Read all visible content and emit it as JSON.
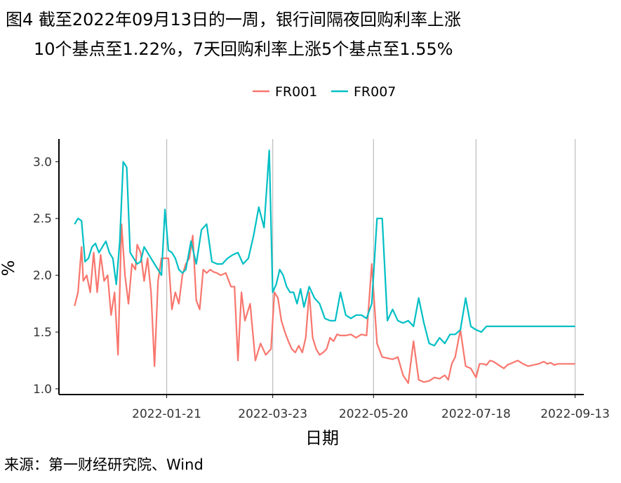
{
  "title": {
    "line1": "图4  截至2022年09月13日的一周，银行间隔夜回购利率上涨",
    "line2": "10个基点至1.22%，7天回购利率上涨5个基点至1.55%"
  },
  "source": "来源：第一财经研究院、Wind",
  "chart_data": {
    "type": "line",
    "xlabel": "日期",
    "ylabel": "%",
    "ylim": [
      0.95,
      3.2
    ],
    "xlim": [
      "2021-11-20",
      "2022-09-18"
    ],
    "yticks": [
      "1.0",
      "1.5",
      "2.0",
      "2.5",
      "3.0"
    ],
    "xticks": [
      "2022-01-21",
      "2022-03-23",
      "2022-05-20",
      "2022-07-18",
      "2022-09-13"
    ],
    "grid": {
      "vertical_major": true,
      "horizontal": false
    },
    "legend_position": "top",
    "colors": {
      "FR001": "#F8766D",
      "FR007": "#00BFC4"
    },
    "series": [
      {
        "name": "FR001",
        "x": [
          "2021-11-29",
          "2021-12-01",
          "2021-12-03",
          "2021-12-04",
          "2021-12-06",
          "2021-12-08",
          "2021-12-10",
          "2021-12-12",
          "2021-12-14",
          "2021-12-16",
          "2021-12-18",
          "2021-12-20",
          "2021-12-22",
          "2021-12-24",
          "2021-12-26",
          "2021-12-28",
          "2021-12-30",
          "2022-01-01",
          "2022-01-03",
          "2022-01-04",
          "2022-01-06",
          "2022-01-08",
          "2022-01-10",
          "2022-01-12",
          "2022-01-14",
          "2022-01-16",
          "2022-01-18",
          "2022-01-20",
          "2022-01-22",
          "2022-01-24",
          "2022-01-26",
          "2022-01-28",
          "2022-01-30",
          "2022-02-01",
          "2022-02-03",
          "2022-02-05",
          "2022-02-07",
          "2022-02-09",
          "2022-02-11",
          "2022-02-13",
          "2022-02-15",
          "2022-02-17",
          "2022-02-19",
          "2022-02-21",
          "2022-02-24",
          "2022-02-27",
          "2022-03-01",
          "2022-03-03",
          "2022-03-05",
          "2022-03-07",
          "2022-03-10",
          "2022-03-13",
          "2022-03-16",
          "2022-03-19",
          "2022-03-22",
          "2022-03-24",
          "2022-03-26",
          "2022-03-28",
          "2022-03-30",
          "2022-04-01",
          "2022-04-03",
          "2022-04-05",
          "2022-04-07",
          "2022-04-09",
          "2022-04-11",
          "2022-04-13",
          "2022-04-15",
          "2022-04-17",
          "2022-04-19",
          "2022-04-21",
          "2022-04-23",
          "2022-04-25",
          "2022-04-27",
          "2022-04-29",
          "2022-05-01",
          "2022-05-04",
          "2022-05-07",
          "2022-05-10",
          "2022-05-13",
          "2022-05-16",
          "2022-05-19",
          "2022-05-22",
          "2022-05-25",
          "2022-05-28",
          "2022-05-31",
          "2022-06-03",
          "2022-06-06",
          "2022-06-09",
          "2022-06-12",
          "2022-06-15",
          "2022-06-18",
          "2022-06-21",
          "2022-06-24",
          "2022-06-27",
          "2022-06-30",
          "2022-07-02",
          "2022-07-04",
          "2022-07-06",
          "2022-07-09",
          "2022-07-12",
          "2022-07-15",
          "2022-07-18",
          "2022-07-20",
          "2022-07-22",
          "2022-07-24",
          "2022-07-26",
          "2022-07-28",
          "2022-07-30",
          "2022-08-01",
          "2022-08-03",
          "2022-08-05",
          "2022-08-08",
          "2022-08-11",
          "2022-08-14",
          "2022-08-17",
          "2022-08-20",
          "2022-08-23",
          "2022-08-26",
          "2022-08-28",
          "2022-08-30",
          "2022-09-01",
          "2022-09-03",
          "2022-09-05",
          "2022-09-07",
          "2022-09-09",
          "2022-09-11",
          "2022-09-13"
        ],
        "values": [
          1.73,
          1.85,
          2.25,
          1.95,
          2.0,
          1.85,
          2.2,
          1.85,
          2.18,
          1.95,
          2.0,
          1.65,
          1.85,
          1.3,
          2.45,
          2.0,
          1.75,
          2.1,
          2.05,
          2.27,
          2.2,
          1.95,
          2.15,
          1.85,
          1.2,
          1.95,
          2.15,
          2.15,
          2.15,
          1.7,
          1.85,
          1.75,
          2.0,
          2.1,
          2.15,
          2.35,
          1.78,
          1.7,
          2.05,
          2.02,
          2.05,
          2.03,
          2.02,
          2.0,
          2.02,
          1.9,
          1.9,
          1.25,
          1.85,
          1.6,
          1.75,
          1.25,
          1.4,
          1.3,
          1.35,
          1.85,
          1.8,
          1.6,
          1.5,
          1.42,
          1.35,
          1.32,
          1.38,
          1.32,
          1.45,
          1.85,
          1.45,
          1.35,
          1.3,
          1.32,
          1.35,
          1.45,
          1.42,
          1.48,
          1.47,
          1.47,
          1.48,
          1.45,
          1.48,
          1.47,
          2.1,
          1.4,
          1.28,
          1.27,
          1.26,
          1.28,
          1.12,
          1.05,
          1.42,
          1.08,
          1.06,
          1.07,
          1.1,
          1.09,
          1.12,
          1.08,
          1.22,
          1.28,
          1.52,
          1.2,
          1.18,
          1.1,
          1.22,
          1.22,
          1.21,
          1.25,
          1.24,
          1.22,
          1.2,
          1.18,
          1.21,
          1.23,
          1.25,
          1.22,
          1.2,
          1.21,
          1.22,
          1.24,
          1.22,
          1.23,
          1.21,
          1.22,
          1.22,
          1.22,
          1.22,
          1.22,
          1.22
        ]
      },
      {
        "name": "FR007",
        "x": [
          "2021-11-29",
          "2021-12-01",
          "2021-12-03",
          "2021-12-05",
          "2021-12-07",
          "2021-12-09",
          "2021-12-11",
          "2021-12-13",
          "2021-12-15",
          "2021-12-17",
          "2021-12-19",
          "2021-12-21",
          "2021-12-23",
          "2021-12-25",
          "2021-12-27",
          "2021-12-29",
          "2021-12-31",
          "2022-01-02",
          "2022-01-04",
          "2022-01-06",
          "2022-01-08",
          "2022-01-10",
          "2022-01-12",
          "2022-01-14",
          "2022-01-16",
          "2022-01-18",
          "2022-01-20",
          "2022-01-22",
          "2022-01-24",
          "2022-01-26",
          "2022-01-28",
          "2022-01-30",
          "2022-02-01",
          "2022-02-04",
          "2022-02-07",
          "2022-02-10",
          "2022-02-13",
          "2022-02-16",
          "2022-02-19",
          "2022-02-22",
          "2022-02-25",
          "2022-02-28",
          "2022-03-03",
          "2022-03-06",
          "2022-03-09",
          "2022-03-12",
          "2022-03-15",
          "2022-03-18",
          "2022-03-21",
          "2022-03-23",
          "2022-03-25",
          "2022-03-27",
          "2022-03-29",
          "2022-03-31",
          "2022-04-02",
          "2022-04-04",
          "2022-04-06",
          "2022-04-08",
          "2022-04-10",
          "2022-04-13",
          "2022-04-16",
          "2022-04-19",
          "2022-04-22",
          "2022-04-25",
          "2022-04-28",
          "2022-05-01",
          "2022-05-04",
          "2022-05-07",
          "2022-05-10",
          "2022-05-13",
          "2022-05-16",
          "2022-05-19",
          "2022-05-22",
          "2022-05-25",
          "2022-05-28",
          "2022-05-31",
          "2022-06-03",
          "2022-06-06",
          "2022-06-09",
          "2022-06-12",
          "2022-06-15",
          "2022-06-18",
          "2022-06-21",
          "2022-06-24",
          "2022-06-27",
          "2022-06-30",
          "2022-07-03",
          "2022-07-06",
          "2022-07-09",
          "2022-07-12",
          "2022-07-15",
          "2022-07-18",
          "2022-07-21",
          "2022-07-24",
          "2022-07-27",
          "2022-07-30",
          "2022-08-02",
          "2022-08-05",
          "2022-08-08",
          "2022-08-11",
          "2022-08-14",
          "2022-08-17",
          "2022-08-20",
          "2022-08-23",
          "2022-08-26",
          "2022-08-29",
          "2022-09-01",
          "2022-09-03",
          "2022-09-05",
          "2022-09-07",
          "2022-09-09",
          "2022-09-11",
          "2022-09-13"
        ],
        "values": [
          2.45,
          2.5,
          2.48,
          2.12,
          2.15,
          2.25,
          2.28,
          2.2,
          2.25,
          2.3,
          2.2,
          2.15,
          1.92,
          2.3,
          3.0,
          2.95,
          2.2,
          2.15,
          2.1,
          2.12,
          2.25,
          2.2,
          2.15,
          2.1,
          2.05,
          2.0,
          2.58,
          2.22,
          2.2,
          2.15,
          2.05,
          2.02,
          2.05,
          2.3,
          2.1,
          2.4,
          2.45,
          2.12,
          2.1,
          2.1,
          2.15,
          2.18,
          2.2,
          2.1,
          2.15,
          2.35,
          2.6,
          2.42,
          3.1,
          1.85,
          1.92,
          2.05,
          2.0,
          1.9,
          1.85,
          1.85,
          1.75,
          1.88,
          1.72,
          1.9,
          1.8,
          1.75,
          1.62,
          1.6,
          1.6,
          1.85,
          1.65,
          1.62,
          1.65,
          1.65,
          1.62,
          1.75,
          2.5,
          2.5,
          1.6,
          1.7,
          1.6,
          1.58,
          1.6,
          1.55,
          1.8,
          1.58,
          1.4,
          1.38,
          1.45,
          1.4,
          1.48,
          1.48,
          1.52,
          1.8,
          1.55,
          1.52,
          1.5,
          1.55,
          1.55,
          1.55,
          1.55,
          1.55,
          1.55,
          1.55,
          1.55,
          1.55,
          1.55,
          1.55,
          1.55,
          1.55,
          1.55,
          1.55,
          1.55,
          1.55,
          1.55,
          1.55,
          1.55
        ]
      }
    ]
  }
}
